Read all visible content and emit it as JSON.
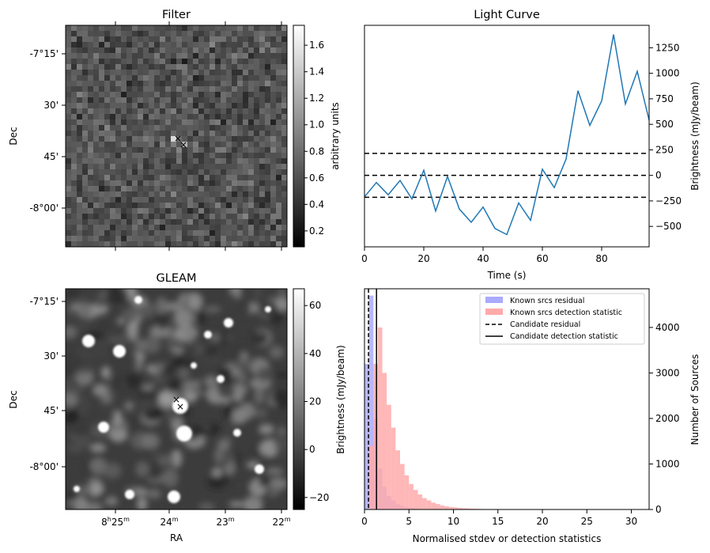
{
  "filter_panel": {
    "title": "Filter",
    "ylabel": "Dec",
    "yticks": [
      "-7°15'",
      "30'",
      "45'",
      "-8°00'"
    ],
    "colorbar": {
      "label": "arbitrary units",
      "range": [
        0.08,
        1.75
      ],
      "ticks": [
        "1.6",
        "1.4",
        "1.2",
        "1.0",
        "0.8",
        "0.6",
        "0.4",
        "0.2"
      ],
      "tick_values": [
        1.6,
        1.4,
        1.2,
        1.0,
        0.8,
        0.6,
        0.4,
        0.2
      ]
    }
  },
  "gleam_panel": {
    "title": "GLEAM",
    "ylabel": "Dec",
    "xlabel": "RA",
    "yticks": [
      "-7°15'",
      "30'",
      "45'",
      "-8°00'"
    ],
    "xticks": [
      {
        "h": "8",
        "m": "25",
        "hsup": "h",
        "msup": "m"
      },
      {
        "h": "",
        "m": "24",
        "hsup": "",
        "msup": "m"
      },
      {
        "h": "",
        "m": "23",
        "hsup": "",
        "msup": "m"
      },
      {
        "h": "",
        "m": "22",
        "hsup": "",
        "msup": "m"
      }
    ],
    "colorbar": {
      "range": [
        -25,
        67
      ],
      "ticks": [
        "60",
        "40",
        "20",
        "0",
        "−20"
      ],
      "tick_values": [
        60,
        40,
        20,
        0,
        -20
      ]
    }
  },
  "markers": {
    "red_color": "#ff0000",
    "blue_color": "#0000cc"
  },
  "colors": {
    "line": "#1f77b4",
    "known_residual": "#aaaaff",
    "known_detection": "#ffaaaa"
  },
  "chart_data": [
    {
      "type": "line",
      "title": "Light Curve",
      "xlabel": "Time (s)",
      "ylabel": "Brightness (mJy/beam)",
      "xlim": [
        0,
        96
      ],
      "ylim": [
        -700,
        1470
      ],
      "xticks": [
        0,
        20,
        40,
        60,
        80
      ],
      "yticks": [
        -500,
        -250,
        0,
        250,
        500,
        750,
        1000,
        1250
      ],
      "ytick_labels": [
        "−500",
        "−250",
        "0",
        "250",
        "500",
        "750",
        "1000",
        "1250"
      ],
      "x": [
        0,
        4,
        8,
        12,
        16,
        20,
        24,
        28,
        32,
        36,
        40,
        44,
        48,
        52,
        56,
        60,
        64,
        68,
        72,
        76,
        80,
        84,
        88,
        92,
        96
      ],
      "values": [
        -210,
        -70,
        -190,
        -50,
        -230,
        50,
        -350,
        -10,
        -330,
        -460,
        -310,
        -520,
        -580,
        -270,
        -440,
        60,
        -120,
        160,
        830,
        490,
        730,
        1380,
        700,
        1020,
        540
      ],
      "hlines": [
        215,
        0,
        -215
      ]
    },
    {
      "type": "bar",
      "xlabel": "Normalised stdev or detection statistics",
      "ylabel": "Number of Sources",
      "left_ylabel": "Brightness (mJy/beam)",
      "xlim": [
        0,
        32
      ],
      "ylim": [
        0,
        4850
      ],
      "xticks": [
        0,
        5,
        10,
        15,
        20,
        25,
        30
      ],
      "yticks": [
        0,
        1000,
        2000,
        3000,
        4000
      ],
      "bin_width": 0.5,
      "bins_start": 0,
      "series": [
        {
          "name": "Known srcs residual",
          "values": [
            3200,
            4700,
            2000,
            900,
            500,
            300,
            200,
            120,
            80,
            50,
            30,
            20,
            10,
            8,
            5
          ]
        },
        {
          "name": "Known srcs detection statistic",
          "values": [
            0,
            1400,
            3200,
            4000,
            3000,
            2300,
            1800,
            1300,
            1000,
            750,
            560,
            430,
            330,
            250,
            200,
            150,
            120,
            90,
            70,
            55,
            45,
            35,
            28,
            22,
            18,
            14,
            11,
            9,
            7,
            6,
            5,
            4,
            3,
            3,
            2,
            2,
            2,
            1,
            1,
            1,
            1,
            1,
            1,
            1,
            1,
            1,
            1,
            1,
            1,
            1,
            1,
            1,
            1,
            1,
            1,
            1,
            1,
            1,
            1,
            1,
            1,
            1,
            1,
            1
          ]
        }
      ],
      "vlines": [
        {
          "name": "Candidate residual",
          "x": 0.45,
          "style": "dashed"
        },
        {
          "name": "Candidate detection statistic",
          "x": 1.35,
          "style": "solid"
        }
      ],
      "legend": "top-right"
    }
  ]
}
